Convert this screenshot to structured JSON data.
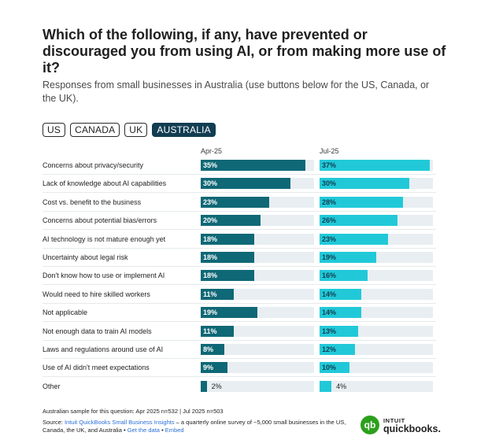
{
  "title": "Which of the following, if any, have prevented or discouraged you from using AI, or from making more use of it?",
  "subtitle": "Responses from small businesses in Australia (use buttons below for the US, Canada, or the UK).",
  "region_buttons": [
    {
      "label": "US",
      "active": false
    },
    {
      "label": "CANADA",
      "active": false
    },
    {
      "label": "UK",
      "active": false
    },
    {
      "label": "AUSTRALIA",
      "active": true
    }
  ],
  "colors": {
    "apr": "#0f6876",
    "jul": "#21c9d8",
    "track": "#e8eef1",
    "active_button": "#123d52"
  },
  "chart_data": {
    "type": "bar",
    "columns": [
      "Apr-25",
      "Jul-25"
    ],
    "categories": [
      "Concerns about privacy/security",
      "Lack of knowledge about AI capabilities",
      "Cost vs. benefit to the business",
      "Concerns about potential bias/errors",
      "AI technology is not mature enough yet",
      "Uncertainty about legal risk",
      "Don't know how to use or implement AI",
      "Would need to hire skilled workers",
      "Not applicable",
      "Not enough data to train AI models",
      "Laws and regulations around use of AI",
      "Use of AI didn't meet expectations",
      "Other"
    ],
    "series": [
      {
        "name": "Apr-25",
        "values": [
          35,
          30,
          23,
          20,
          18,
          18,
          18,
          11,
          19,
          11,
          8,
          9,
          2
        ]
      },
      {
        "name": "Jul-25",
        "values": [
          37,
          30,
          28,
          26,
          23,
          19,
          16,
          14,
          14,
          13,
          12,
          10,
          4
        ]
      }
    ],
    "value_labels": {
      "Apr-25": [
        "35%",
        "30%",
        "23%",
        "20%",
        "18%",
        "18%",
        "18%",
        "11%",
        "19%",
        "11%",
        "8%",
        "9%",
        "2%"
      ],
      "Jul-25": [
        "37%",
        "30%",
        "28%",
        "26%",
        "23%",
        "19%",
        "16%",
        "14%",
        "14%",
        "13%",
        "12%",
        "10%",
        "4%"
      ]
    },
    "xlim": [
      0,
      38
    ]
  },
  "footnote": "Australian sample for this question: Apr 2025 n=532 | Jul 2025 n=503",
  "source": {
    "prefix": "Source: ",
    "link_text": "Intuit QuickBooks Small Business Insights",
    "text": " – a quarterly online survey of ~5,000 small businesses in the US, Canada, the UK, and Australia • ",
    "get_data": "Get the data",
    "bullet": " • ",
    "embed": "Embed"
  },
  "logo": {
    "mark": "qb",
    "brand": "INTUIT",
    "product": "quickbooks."
  }
}
